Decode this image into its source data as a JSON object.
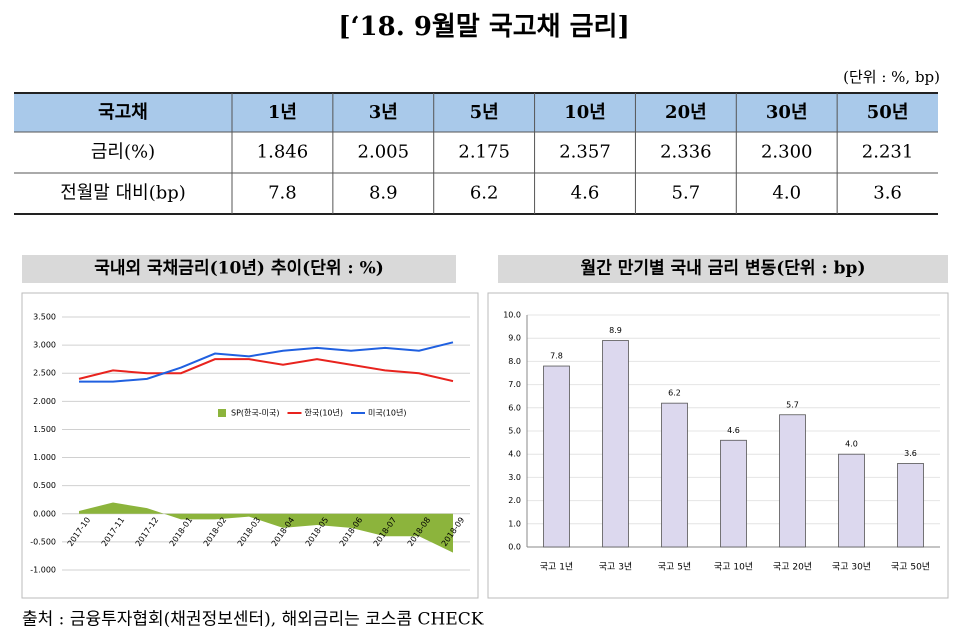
{
  "title": "[‘18. 9월말 국고채 금리]",
  "unit": "(단위 : %, bp)",
  "table": {
    "header": [
      "국고채",
      "1년",
      "3년",
      "5년",
      "10년",
      "20년",
      "30년",
      "50년"
    ],
    "rows": [
      [
        "금리(%)",
        "1.846",
        "2.005",
        "2.175",
        "2.357",
        "2.336",
        "2.300",
        "2.231"
      ],
      [
        "전월말 대비(bp)",
        "7.8",
        "8.9",
        "6.2",
        "4.6",
        "5.7",
        "4.0",
        "3.6"
      ]
    ]
  },
  "chart_data": [
    {
      "type": "line",
      "title": "국내외 국채금리(10년) 추이(단위 : %)",
      "categories": [
        "2017-10",
        "2017-11",
        "2017-12",
        "2018-01",
        "2018-02",
        "2018-03",
        "2018-04",
        "2018-05",
        "2018-06",
        "2018-07",
        "2018-08",
        "2018-09"
      ],
      "series": [
        {
          "name": "SP(한국-미국)",
          "color": "#8cb43c",
          "fill": true,
          "values": [
            0.05,
            0.2,
            0.1,
            -0.1,
            -0.1,
            -0.05,
            -0.25,
            -0.2,
            -0.25,
            -0.4,
            -0.4,
            -0.69
          ]
        },
        {
          "name": "한국(10년)",
          "color": "#e8231e",
          "values": [
            2.4,
            2.55,
            2.5,
            2.5,
            2.75,
            2.75,
            2.65,
            2.75,
            2.65,
            2.55,
            2.5,
            2.36
          ]
        },
        {
          "name": "미국(10년)",
          "color": "#2060e0",
          "values": [
            2.35,
            2.35,
            2.4,
            2.6,
            2.85,
            2.8,
            2.9,
            2.95,
            2.9,
            2.95,
            2.9,
            3.05
          ]
        }
      ],
      "ylim": [
        -1,
        3.5
      ],
      "yticks": [
        {
          "value": -1,
          "label": "-1.000"
        },
        {
          "value": -0.5,
          "label": "-0.500"
        },
        {
          "value": 0,
          "label": "0.000"
        },
        {
          "value": 0.5,
          "label": "0.500"
        },
        {
          "value": 1,
          "label": "1.000"
        },
        {
          "value": 1.5,
          "label": "1.500"
        },
        {
          "value": 2,
          "label": "2.000"
        },
        {
          "value": 2.5,
          "label": "2.500"
        },
        {
          "value": 3,
          "label": "3.000"
        },
        {
          "value": 3.5,
          "label": "3.500"
        }
      ],
      "grid": true
    },
    {
      "type": "bar",
      "title": "월간 만기별 국내 금리 변동(단위 : bp)",
      "categories": [
        "국고 1년",
        "국고 3년",
        "국고 5년",
        "국고 10년",
        "국고 20년",
        "국고 30년",
        "국고 50년"
      ],
      "values": [
        7.8,
        8.9,
        6.2,
        4.6,
        5.7,
        4.0,
        3.6
      ],
      "value_labels": [
        "7.8",
        "8.9",
        "6.2",
        "4.6",
        "5.7",
        "4.0",
        "3.6"
      ],
      "color": "#dcd8ee",
      "ylim": [
        0,
        10
      ],
      "yticks": [
        {
          "value": 0,
          "label": "0.0"
        },
        {
          "value": 1,
          "label": "1.0"
        },
        {
          "value": 2,
          "label": "2.0"
        },
        {
          "value": 3,
          "label": "3.0"
        },
        {
          "value": 4,
          "label": "4.0"
        },
        {
          "value": 5,
          "label": "5.0"
        },
        {
          "value": 6,
          "label": "6.0"
        },
        {
          "value": 7,
          "label": "7.0"
        },
        {
          "value": 8,
          "label": "8.0"
        },
        {
          "value": 9,
          "label": "9.0"
        },
        {
          "value": 10,
          "label": "10.0"
        }
      ],
      "grid": true
    }
  ],
  "source": "출처 : 금융투자협회(채권정보센터), 해외금리는 코스콤 CHECK"
}
